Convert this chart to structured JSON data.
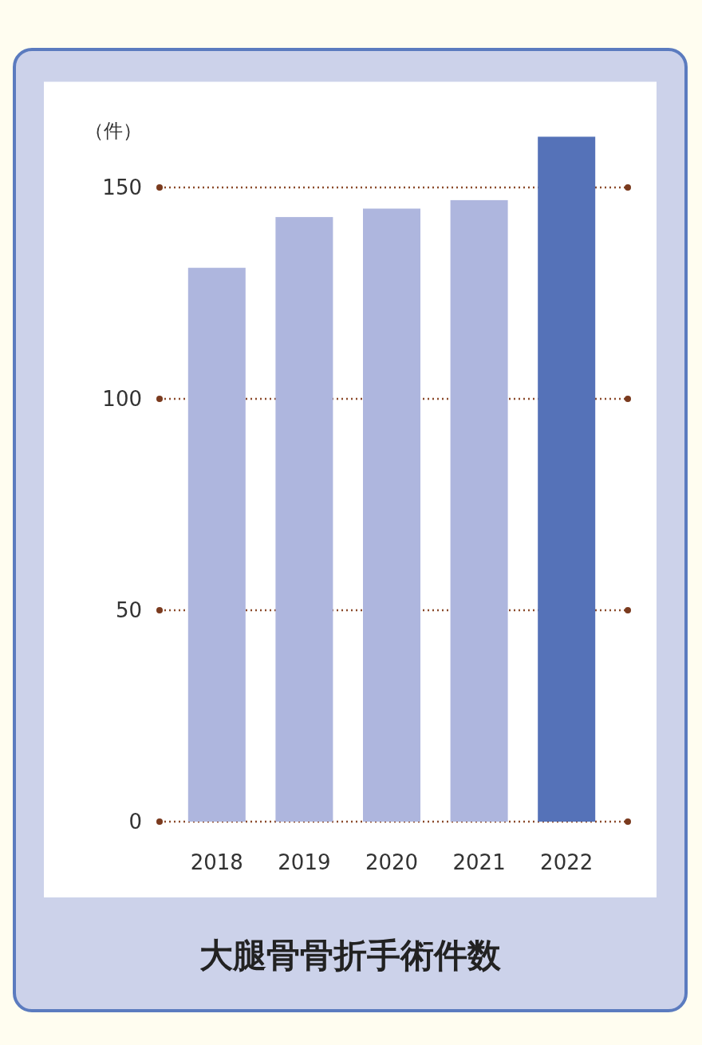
{
  "chart_data": {
    "type": "bar",
    "title": "大腿骨骨折手術件数",
    "ylabel": "（件）",
    "categories": [
      "2018",
      "2019",
      "2020",
      "2021",
      "2022"
    ],
    "values": [
      131,
      143,
      145,
      147,
      162
    ],
    "colors": [
      "#aeb6de",
      "#aeb6de",
      "#aeb6de",
      "#aeb6de",
      "#5572b8"
    ],
    "ylim": [
      0,
      175
    ],
    "yticks": [
      0,
      50,
      100,
      150
    ],
    "grid": "y"
  }
}
